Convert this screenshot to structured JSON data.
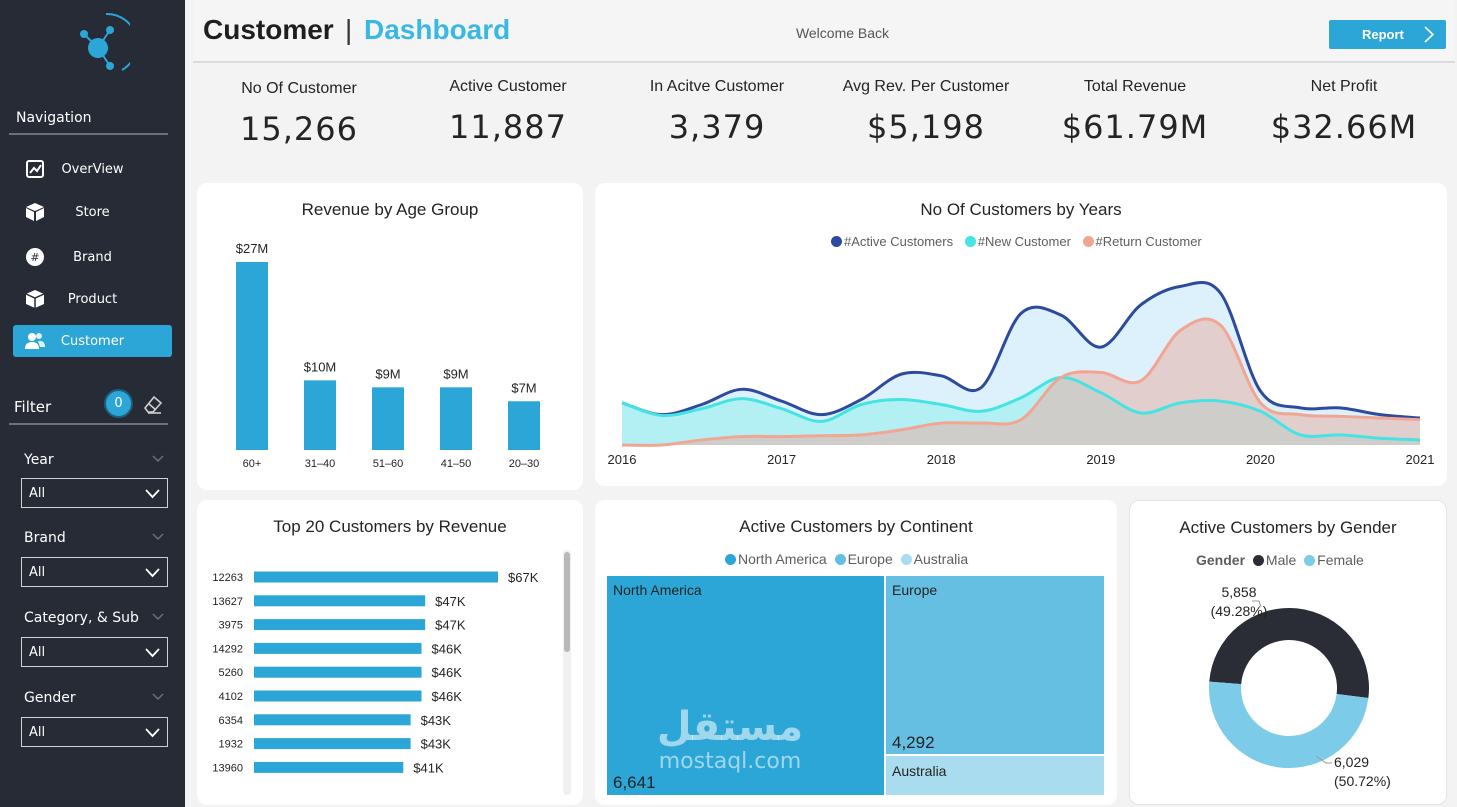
{
  "header": {
    "title_main": "Customer",
    "title_separator": "|",
    "title_accent": "Dashboard",
    "welcome": "Welcome Back",
    "report_button": "Report"
  },
  "sidebar": {
    "navigation_title": "Navigation",
    "items": [
      {
        "label": "OverView",
        "icon": "chart-icon",
        "active": false
      },
      {
        "label": "Store",
        "icon": "box-icon",
        "active": false
      },
      {
        "label": "Brand",
        "icon": "brand-icon",
        "active": false
      },
      {
        "label": "Product",
        "icon": "package-icon",
        "active": false
      },
      {
        "label": "Customer",
        "icon": "users-icon",
        "active": true
      }
    ],
    "filter_title": "Filter",
    "filter_count": "0",
    "filters": [
      {
        "label": "Year",
        "value": "All"
      },
      {
        "label": "Brand",
        "value": "All"
      },
      {
        "label": "Category, & Sub",
        "value": "All"
      },
      {
        "label": "Gender",
        "value": "All"
      }
    ]
  },
  "kpis": [
    {
      "label": "No Of Customer",
      "value": "15,266"
    },
    {
      "label": "Active Customer",
      "value": "11,887"
    },
    {
      "label": "In Acitve Customer",
      "value": "3,379"
    },
    {
      "label": "Avg Rev. Per Customer",
      "value": "$5,198"
    },
    {
      "label": "Total Revenue",
      "value": "$61.79M"
    },
    {
      "label": "Net Profit",
      "value": "$32.66M"
    }
  ],
  "colors": {
    "accent": "#2ba6d6",
    "sidebar_bg": "#262b36",
    "active_line": "#2e4a9e",
    "new_line": "#45e3e3",
    "return_line": "#f2a593",
    "europe": "#65bfe2",
    "australia": "#a9dcef",
    "male": "#2a2d36",
    "female": "#7ccbe8"
  },
  "cards": {
    "age": {
      "title": "Revenue by Age Group"
    },
    "years": {
      "title": "No Of Customers by Years"
    },
    "top20": {
      "title": "Top 20 Customers by Revenue"
    },
    "continent": {
      "title": "Active Customers by Continent",
      "legend": [
        "North America",
        "Europe",
        "Australia"
      ],
      "tiles": {
        "north_america_label": "North America",
        "north_america_value": "6,641",
        "europe_label": "Europe",
        "europe_value": "4,292",
        "australia_label": "Australia"
      }
    },
    "gender": {
      "title": "Active Customers by Gender",
      "legend_title": "Gender",
      "legend": [
        "Male",
        "Female"
      ],
      "female_value": "5,858",
      "female_pct": "(49.28%)",
      "male_value": "6,029",
      "male_pct": "(50.72%)"
    }
  },
  "watermark": {
    "arabic": "مستقل",
    "latin": "mostaql.com"
  },
  "chart_data": [
    {
      "type": "bar",
      "title": "Revenue by Age Group",
      "categories": [
        "60+",
        "31–40",
        "51–60",
        "41–50",
        "20–30"
      ],
      "values": [
        27,
        10,
        9,
        9,
        7
      ],
      "labels": [
        "$27M",
        "$10M",
        "$9M",
        "$9M",
        "$7M"
      ],
      "ylim": [
        0,
        28
      ]
    },
    {
      "type": "area",
      "title": "No Of Customers by Years",
      "x_ticks": [
        "2016",
        "2017",
        "2018",
        "2019",
        "2020",
        "2021"
      ],
      "x": [
        2016.0,
        2016.25,
        2016.5,
        2016.75,
        2017.0,
        2017.25,
        2017.5,
        2017.75,
        2018.0,
        2018.25,
        2018.5,
        2018.75,
        2019.0,
        2019.25,
        2019.5,
        2019.75,
        2020.0,
        2020.25,
        2020.5,
        2020.75,
        2021.0
      ],
      "series": [
        {
          "name": "#Active Customers",
          "values": [
            250,
            180,
            240,
            330,
            260,
            180,
            270,
            420,
            410,
            340,
            780,
            770,
            580,
            830,
            940,
            900,
            320,
            220,
            220,
            180,
            160
          ]
        },
        {
          "name": "#New Customer",
          "values": [
            250,
            175,
            215,
            275,
            215,
            140,
            240,
            270,
            240,
            200,
            280,
            400,
            310,
            190,
            250,
            260,
            200,
            60,
            60,
            40,
            30
          ]
        },
        {
          "name": "#Return Customer",
          "values": [
            0,
            0,
            30,
            50,
            50,
            55,
            60,
            90,
            130,
            130,
            150,
            400,
            430,
            380,
            680,
            710,
            250,
            180,
            170,
            160,
            150
          ]
        }
      ],
      "ylim": [
        0,
        960
      ]
    },
    {
      "type": "bar",
      "title": "Top 20 Customers by Revenue",
      "orientation": "horizontal",
      "categories": [
        "12263",
        "13627",
        "3975",
        "14292",
        "5260",
        "4102",
        "6354",
        "1932",
        "13960"
      ],
      "values": [
        67,
        47,
        47,
        46,
        46,
        46,
        43,
        43,
        41
      ],
      "labels": [
        "$67K",
        "$47K",
        "$47K",
        "$46K",
        "$46K",
        "$46K",
        "$43K",
        "$43K",
        "$41K"
      ],
      "xlim": [
        0,
        67
      ]
    },
    {
      "type": "treemap",
      "title": "Active Customers by Continent",
      "categories": [
        "North America",
        "Europe",
        "Australia"
      ],
      "values": [
        6641,
        4292,
        954
      ]
    },
    {
      "type": "pie",
      "title": "Active Customers by Gender",
      "categories": [
        "Male",
        "Female"
      ],
      "values": [
        6029,
        5858
      ],
      "percent": [
        50.72,
        49.28
      ]
    }
  ]
}
